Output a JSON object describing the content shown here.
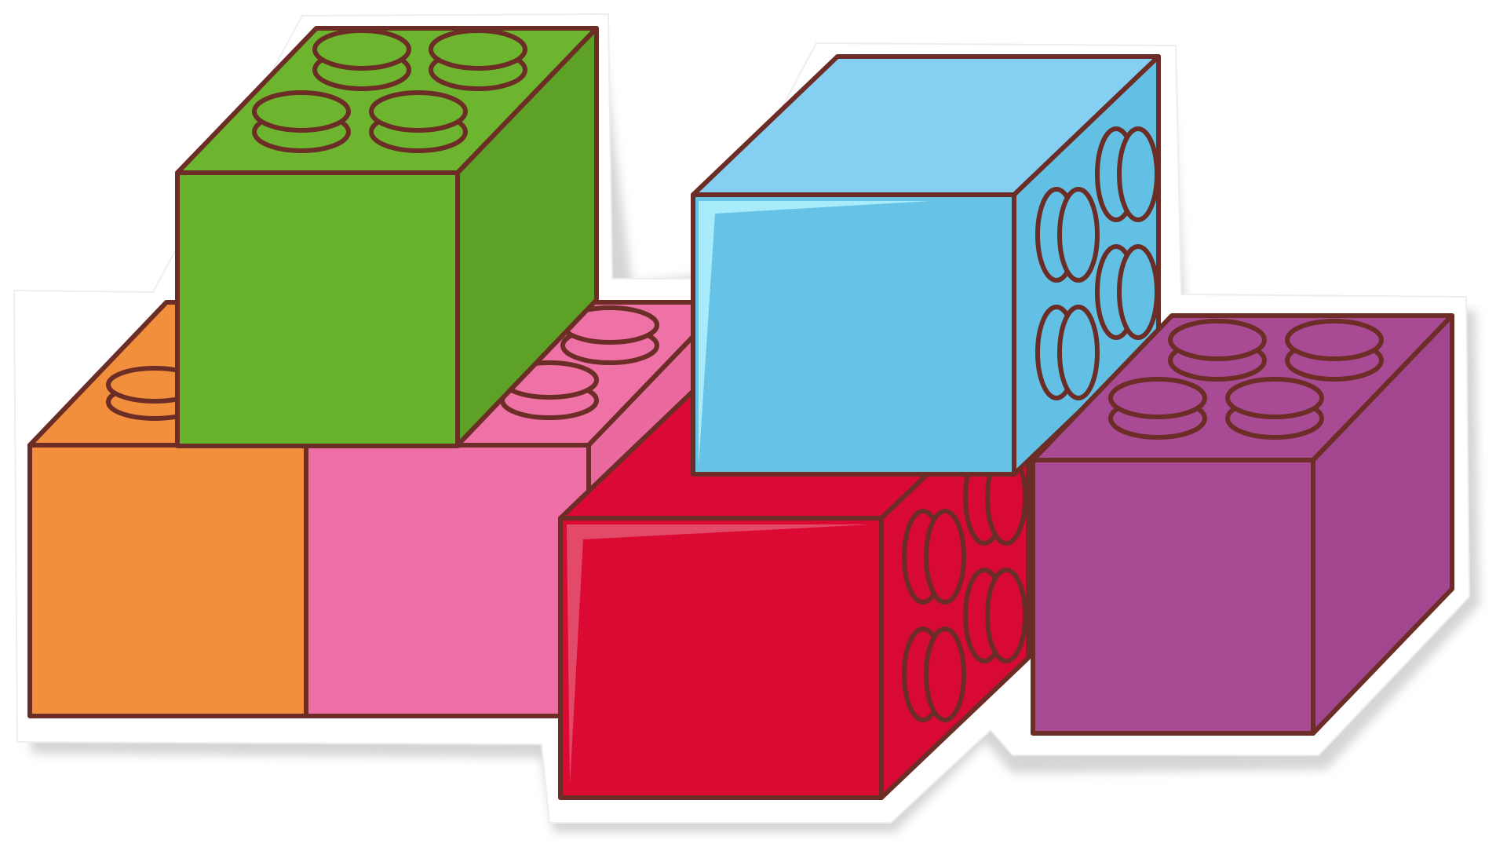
{
  "image": {
    "subject": "toy-building-blocks-sticker",
    "palette": {
      "background": "#ffffff",
      "sticker_border": "#ffffff",
      "sticker_shadow": "#b3b3b3",
      "outline": "#6b2d25",
      "green_top": "#6db52f",
      "green_front": "#68b32c",
      "green_side": "#5da226",
      "orange_top": "#f28f3d",
      "orange_front": "#f28e3c",
      "pink_top": "#ee72a6",
      "pink_front": "#ee6fa6",
      "pink_side": "#ea6aa0",
      "blue_top": "#85cff3",
      "blue_front": "#66c3e6",
      "blue_side": "#62c0e4",
      "blue_highlight": "#a8ecfb",
      "red_top": "#dc0935",
      "red_front": "#dc0933",
      "red_side": "#d80a33",
      "red_highlight": "#e24a68",
      "purple_top": "#a84b94",
      "purple_front": "#a84b94",
      "purple_side": "#a34690"
    },
    "blocks": [
      {
        "name": "orange-block",
        "color": "orange",
        "studs_visible": 2
      },
      {
        "name": "pink-block",
        "color": "pink",
        "studs_visible": 2
      },
      {
        "name": "green-block",
        "color": "green",
        "studs_visible": 4
      },
      {
        "name": "red-block",
        "color": "red",
        "studs_visible": 4
      },
      {
        "name": "blue-block",
        "color": "blue",
        "studs_visible": 4
      },
      {
        "name": "purple-block",
        "color": "purple",
        "studs_visible": 4
      }
    ]
  }
}
